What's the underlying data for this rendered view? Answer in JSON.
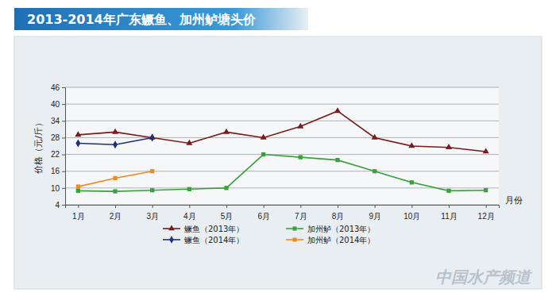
{
  "chart_data": {
    "type": "line",
    "title": "2013-2014年广东鳜鱼、加州鲈塘头价",
    "y_label": "价格（元/斤）",
    "x_label": "月份",
    "annotations": [
      "中国水产频道"
    ],
    "categories": [
      "1月",
      "2月",
      "3月",
      "4月",
      "5月",
      "6月",
      "7月",
      "8月",
      "9月",
      "10月",
      "11月",
      "12月"
    ],
    "series": [
      {
        "name": "鳜鱼（2013年）",
        "color": "#7b1a1a",
        "marker": "triangle",
        "values": [
          29,
          30,
          28,
          26,
          30,
          28,
          32,
          37.5,
          28,
          25,
          24.5,
          23
        ]
      },
      {
        "name": "鳜鱼（2014年）",
        "color": "#1f2f7a",
        "marker": "diamond",
        "values": [
          26,
          25.5,
          28,
          null,
          null,
          null,
          null,
          null,
          null,
          null,
          null,
          null
        ]
      },
      {
        "name": "加州鲈（2013年）",
        "color": "#3aa23a",
        "marker": "square",
        "values": [
          9,
          8.8,
          9.2,
          9.6,
          10,
          22,
          21,
          20,
          16,
          12,
          9,
          9.2
        ]
      },
      {
        "name": "加州鲈（2014年）",
        "color": "#f08a24",
        "marker": "square",
        "values": [
          10.5,
          13.5,
          16,
          null,
          null,
          null,
          null,
          null,
          null,
          null,
          null,
          null
        ]
      }
    ],
    "ylim": [
      4,
      46
    ],
    "yticks": [
      4,
      10,
      16,
      22,
      28,
      34,
      40,
      46
    ],
    "grid": true,
    "legend": "bottom"
  }
}
